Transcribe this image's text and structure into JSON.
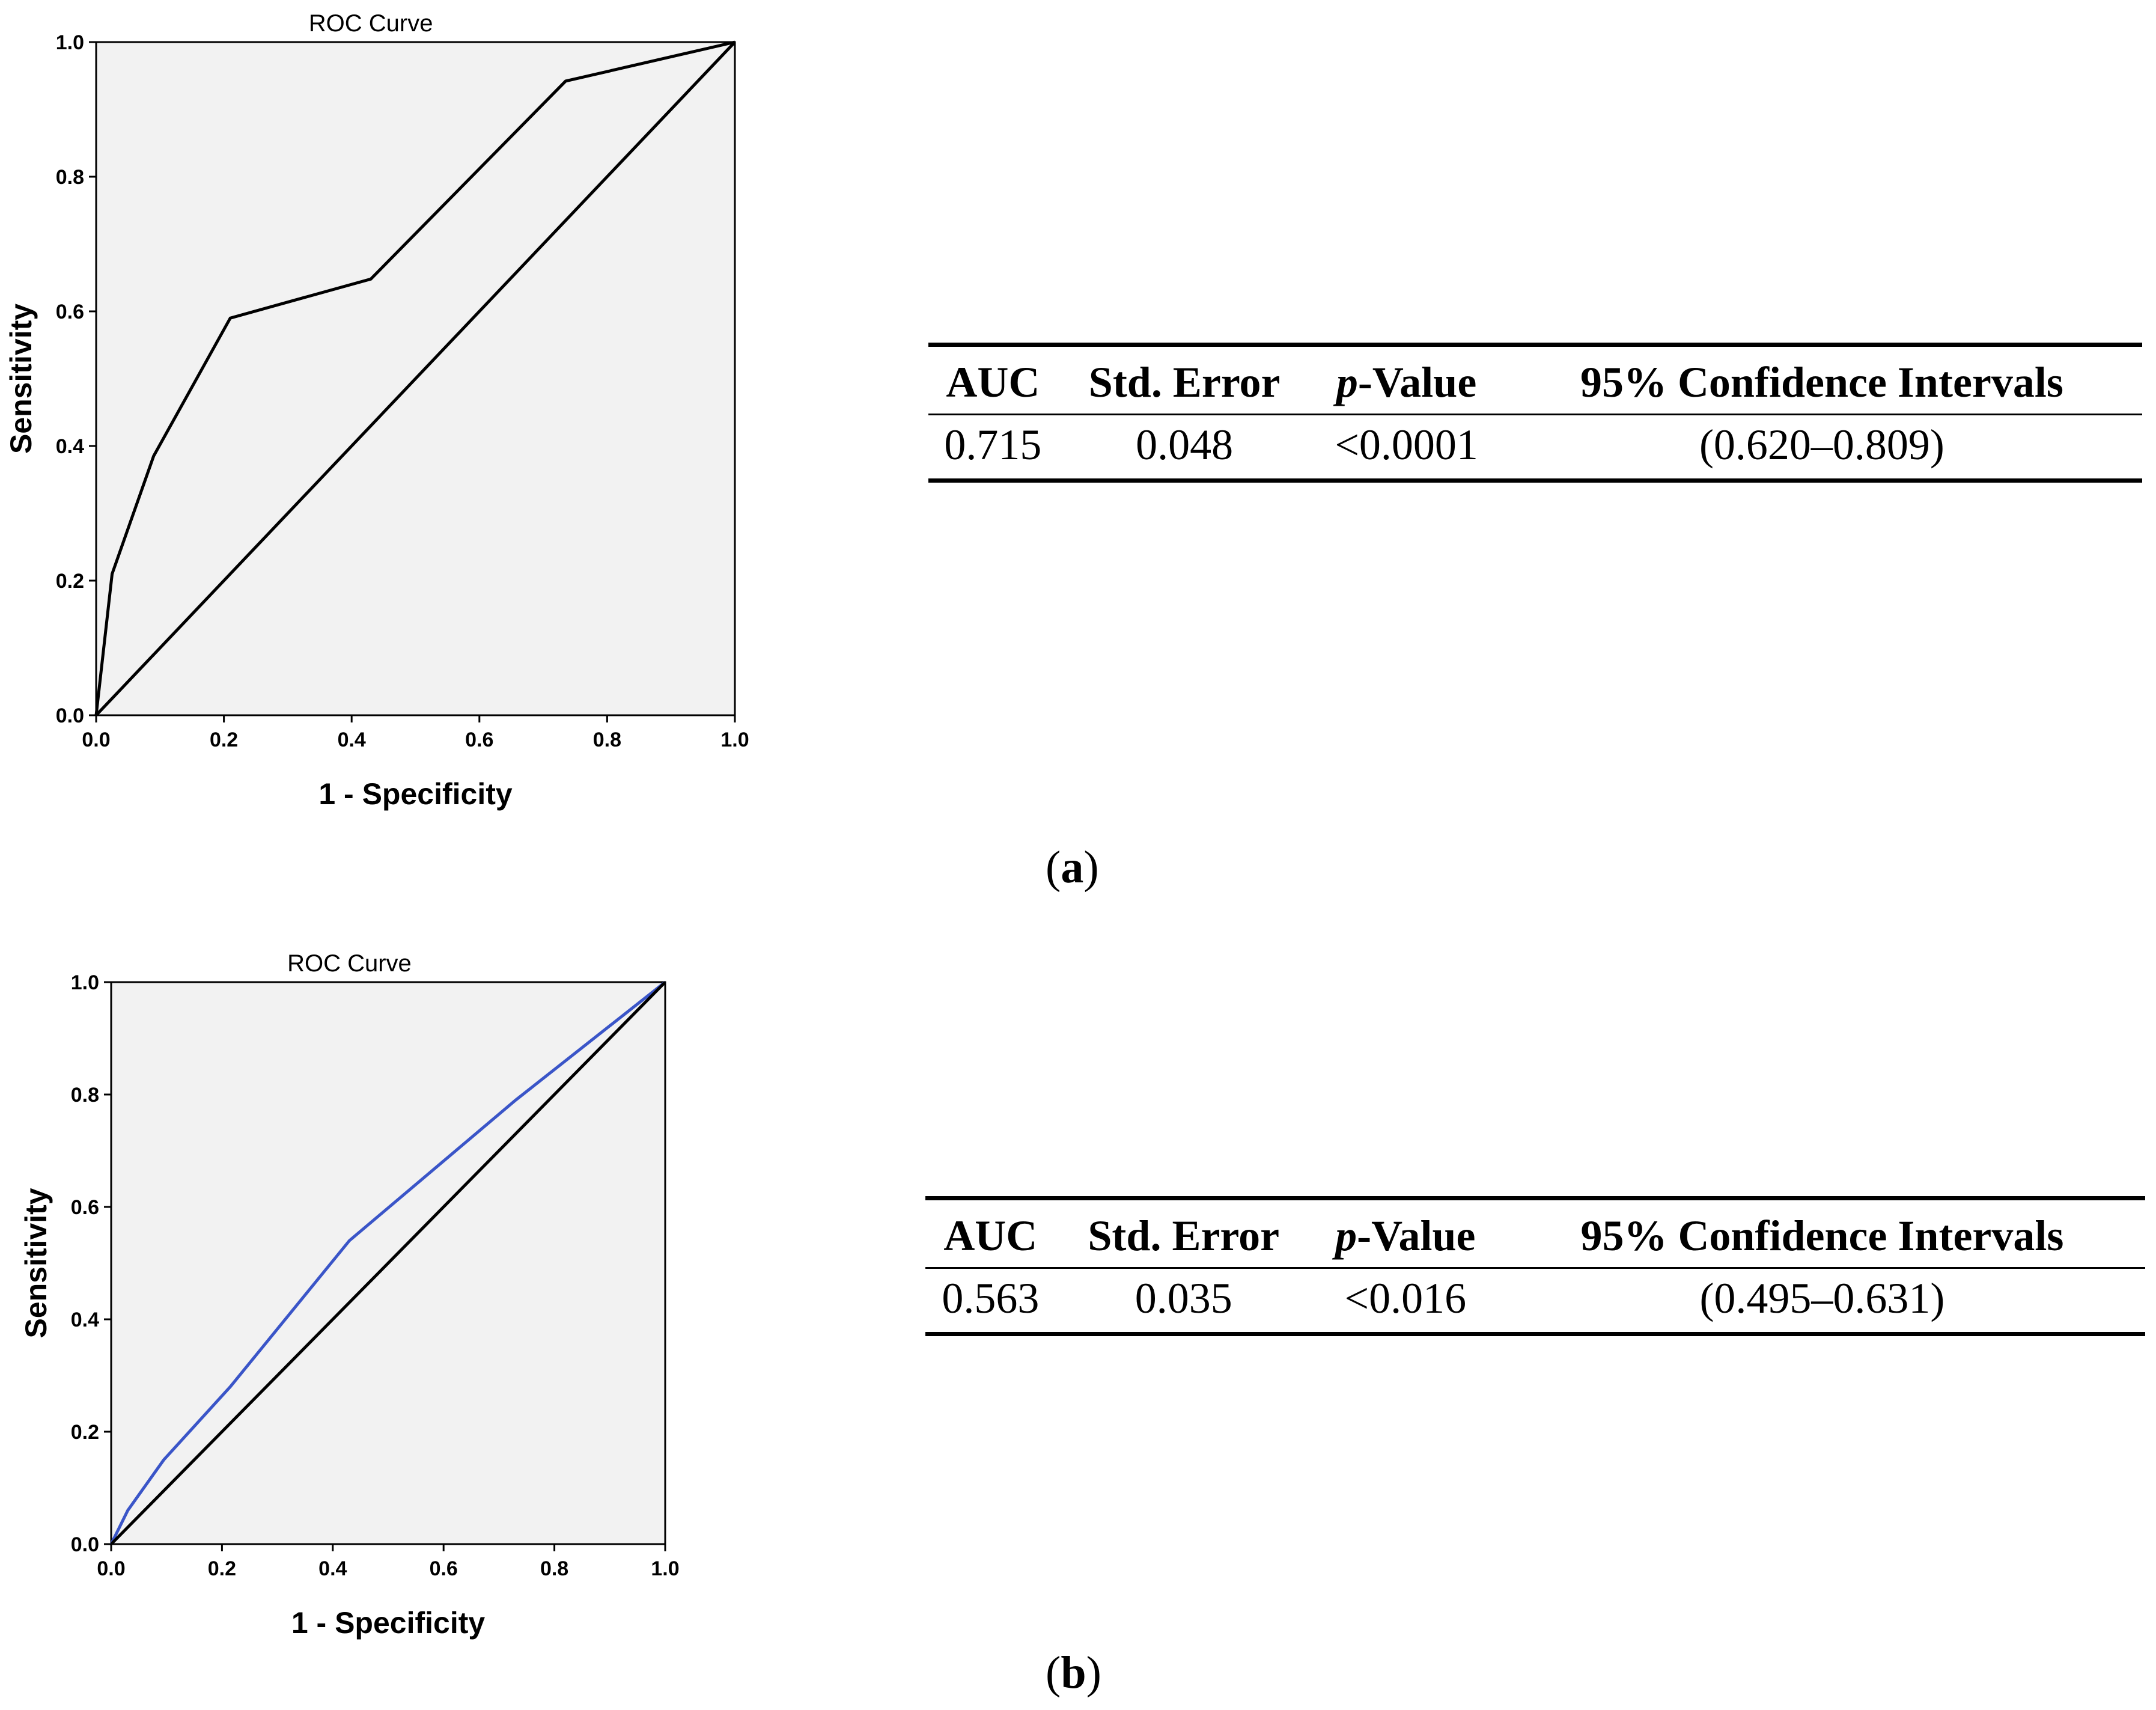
{
  "chart_data": [
    {
      "type": "line",
      "title": "ROC Curve",
      "xlabel": "1 - Specificity",
      "ylabel": "Sensitivity",
      "xlim": [
        0,
        1
      ],
      "ylim": [
        0,
        1
      ],
      "xticks": [
        "0.0",
        "0.2",
        "0.4",
        "0.6",
        "0.8",
        "1.0"
      ],
      "yticks": [
        "0.0",
        "0.2",
        "0.4",
        "0.6",
        "0.8",
        "1.0"
      ],
      "grid": false,
      "series": [
        {
          "color": "#000000",
          "x": [
            0,
            0.025,
            0.09,
            0.21,
            0.43,
            0.735,
            1.0
          ],
          "y": [
            0,
            0.21,
            0.385,
            0.59,
            0.648,
            0.942,
            1.0
          ]
        },
        {
          "color": "#000000",
          "x": [
            0,
            1
          ],
          "y": [
            0,
            1
          ]
        }
      ],
      "stats_table": {
        "headers": [
          "AUC",
          "Std. Error",
          "p-Value",
          "95% Confidence Intervals"
        ],
        "p_letter": "p",
        "p_rest": "-Value",
        "row": [
          "0.715",
          "0.048",
          "<0.0001",
          "(0.620–0.809)"
        ]
      },
      "panel_letter": "a"
    },
    {
      "type": "line",
      "title": "ROC Curve",
      "xlabel": "1 - Specificity",
      "ylabel": "Sensitivity",
      "xlim": [
        0,
        1
      ],
      "ylim": [
        0,
        1
      ],
      "xticks": [
        "0.0",
        "0.2",
        "0.4",
        "0.6",
        "0.8",
        "1.0"
      ],
      "yticks": [
        "0.0",
        "0.2",
        "0.4",
        "0.6",
        "0.8",
        "1.0"
      ],
      "grid": false,
      "series": [
        {
          "color": "#3a55c8",
          "x": [
            0,
            0.03,
            0.095,
            0.215,
            0.43,
            0.73,
            1.0
          ],
          "y": [
            0,
            0.06,
            0.15,
            0.28,
            0.54,
            0.79,
            1.0
          ]
        },
        {
          "color": "#000000",
          "x": [
            0,
            1
          ],
          "y": [
            0,
            1
          ]
        }
      ],
      "stats_table": {
        "headers": [
          "AUC",
          "Std. Error",
          "p-Value",
          "95% Confidence Intervals"
        ],
        "p_letter": "p",
        "p_rest": "-Value",
        "row": [
          "0.563",
          "0.035",
          "<0.016",
          "(0.495–0.631)"
        ]
      },
      "panel_letter": "b"
    }
  ]
}
